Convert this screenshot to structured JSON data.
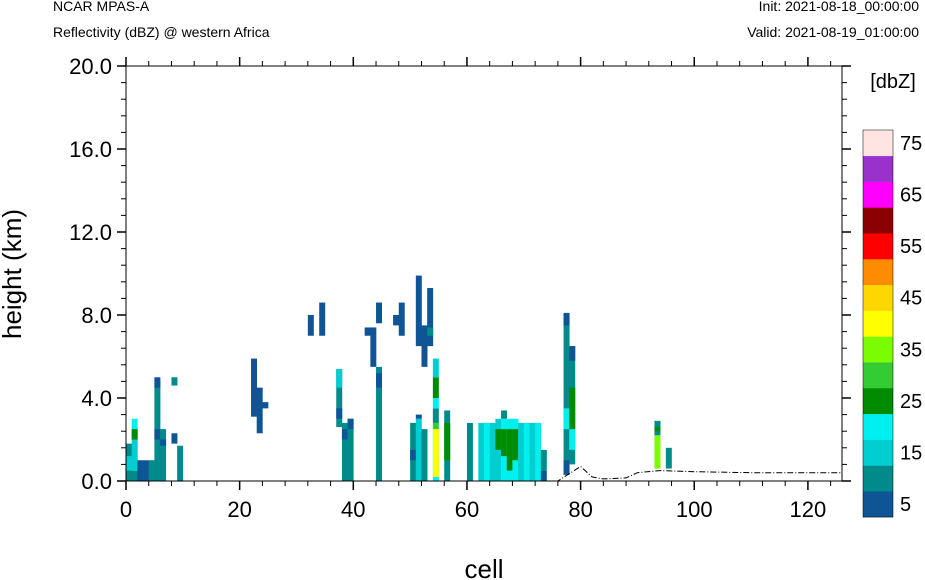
{
  "header": {
    "model": "NCAR MPAS-A",
    "field": "Reflectivity (dBZ) @ western Africa",
    "init": "Init: 2021-08-18_00:00:00",
    "valid": "Valid: 2021-08-19_01:00:00"
  },
  "chart_data": {
    "type": "heatmap",
    "xlabel": "cell",
    "ylabel": "height (km)",
    "xlim": [
      0,
      126
    ],
    "ylim": [
      0,
      20
    ],
    "x_ticks": [
      "0",
      "20",
      "40",
      "60",
      "80",
      "100",
      "120"
    ],
    "y_ticks": [
      "0.0",
      "4.0",
      "8.0",
      "12.0",
      "16.0",
      "20.0"
    ],
    "colorbar": {
      "title": "[dbZ]",
      "levels": [
        5,
        10,
        15,
        20,
        25,
        30,
        35,
        40,
        45,
        50,
        55,
        60,
        65,
        70,
        75
      ],
      "labels": [
        "5",
        "15",
        "25",
        "35",
        "45",
        "55",
        "65",
        "75"
      ],
      "colors": [
        "#0f5596",
        "#008b8b",
        "#00ced1",
        "#00f0f0",
        "#008c00",
        "#33cc33",
        "#7cfc00",
        "#ffff00",
        "#ffd700",
        "#ff8c00",
        "#ff0000",
        "#8b0000",
        "#ff00ff",
        "#9932cc",
        "#ffe4e1"
      ]
    },
    "cells": [
      [
        0.5,
        0,
        1.8,
        10
      ],
      [
        0.5,
        0.5,
        1.2,
        15
      ],
      [
        1.5,
        0,
        0.5,
        10
      ],
      [
        1.5,
        0.5,
        2.5,
        15
      ],
      [
        1.5,
        2.5,
        3.0,
        20
      ],
      [
        1.5,
        2.0,
        2.5,
        25
      ],
      [
        2.5,
        0,
        1.0,
        5
      ],
      [
        3.5,
        0,
        1.0,
        5
      ],
      [
        4.5,
        0,
        1.0,
        10
      ],
      [
        5.5,
        0,
        4.8,
        10
      ],
      [
        5.5,
        2.0,
        2.5,
        5
      ],
      [
        5.5,
        4.5,
        5.0,
        5
      ],
      [
        6.5,
        0,
        2.5,
        10
      ],
      [
        6.5,
        1.7,
        2.0,
        5
      ],
      [
        8.5,
        1.8,
        2.3,
        5
      ],
      [
        8.5,
        4.6,
        5.0,
        10
      ],
      [
        9.5,
        0,
        1.7,
        10
      ],
      [
        22.5,
        3.1,
        5.9,
        5
      ],
      [
        23.5,
        2.3,
        4.5,
        5
      ],
      [
        24.5,
        3.5,
        3.8,
        5
      ],
      [
        32.5,
        7.0,
        8.0,
        5
      ],
      [
        34.5,
        7.0,
        8.6,
        5
      ],
      [
        37.5,
        2.6,
        5.4,
        10
      ],
      [
        37.5,
        3.0,
        3.5,
        5
      ],
      [
        37.5,
        4.5,
        5.4,
        15
      ],
      [
        38.5,
        0,
        2.8,
        10
      ],
      [
        38.5,
        2.0,
        2.5,
        5
      ],
      [
        39.5,
        0,
        3.0,
        10
      ],
      [
        39.5,
        2.5,
        3.0,
        5
      ],
      [
        42.5,
        7.0,
        7.4,
        5
      ],
      [
        43.5,
        5.5,
        7.4,
        5
      ],
      [
        44.5,
        0,
        5.5,
        10
      ],
      [
        44.5,
        4.5,
        5.2,
        5
      ],
      [
        44.5,
        7.6,
        8.6,
        5
      ],
      [
        47.5,
        7.5,
        8.0,
        5
      ],
      [
        48.5,
        7.0,
        8.6,
        5
      ],
      [
        50.5,
        0,
        2.8,
        10
      ],
      [
        50.5,
        1.0,
        1.5,
        5
      ],
      [
        51.5,
        0,
        3.0,
        15
      ],
      [
        51.5,
        3.0,
        3.2,
        5
      ],
      [
        51.5,
        6.5,
        9.9,
        5
      ],
      [
        52.5,
        5.5,
        7.5,
        5
      ],
      [
        52.5,
        0,
        2.5,
        10
      ],
      [
        53.5,
        6.5,
        9.3,
        5
      ],
      [
        53.5,
        7.0,
        7.4,
        10
      ],
      [
        54.5,
        0,
        2.5,
        20
      ],
      [
        54.5,
        2.5,
        2.8,
        30
      ],
      [
        54.5,
        2.8,
        3.5,
        10
      ],
      [
        54.5,
        3.5,
        4.0,
        20
      ],
      [
        54.5,
        4.0,
        5.0,
        25
      ],
      [
        54.5,
        5.0,
        5.9,
        15
      ],
      [
        54.5,
        0.2,
        2.5,
        40
      ],
      [
        56.5,
        0,
        3.4,
        10
      ],
      [
        56.5,
        1.0,
        2.8,
        25
      ],
      [
        60.5,
        0,
        2.8,
        10
      ],
      [
        62.5,
        0,
        2.8,
        15
      ],
      [
        63.5,
        0,
        2.8,
        20
      ],
      [
        64.5,
        0,
        2.8,
        15
      ],
      [
        65.5,
        0,
        3.0,
        15
      ],
      [
        65.5,
        1.5,
        2.5,
        25
      ],
      [
        66.5,
        0,
        3.0,
        20
      ],
      [
        66.5,
        1.2,
        2.5,
        25
      ],
      [
        66.5,
        3.0,
        3.4,
        10
      ],
      [
        67.5,
        0,
        3.0,
        20
      ],
      [
        67.5,
        0.5,
        2.5,
        25
      ],
      [
        68.5,
        0,
        3.0,
        20
      ],
      [
        68.5,
        1.0,
        2.5,
        25
      ],
      [
        69.5,
        0,
        2.8,
        15
      ],
      [
        70.5,
        0,
        2.8,
        20
      ],
      [
        71.5,
        0,
        2.8,
        15
      ],
      [
        72.5,
        0,
        2.8,
        20
      ],
      [
        73.5,
        0.5,
        1.5,
        10
      ],
      [
        73.5,
        0,
        0.5,
        5
      ],
      [
        77.5,
        0.3,
        8.1,
        10
      ],
      [
        77.5,
        2.5,
        3.5,
        20
      ],
      [
        77.5,
        7.5,
        8.1,
        5
      ],
      [
        77.5,
        0.3,
        1.0,
        5
      ],
      [
        78.5,
        0.8,
        6.5,
        10
      ],
      [
        78.5,
        2.5,
        4.5,
        25
      ],
      [
        78.5,
        1.5,
        2.5,
        20
      ],
      [
        78.5,
        5.8,
        6.5,
        5
      ],
      [
        93.5,
        2.2,
        2.9,
        10
      ],
      [
        93.5,
        0.6,
        2.2,
        35
      ],
      [
        93.5,
        2.4,
        2.6,
        25
      ],
      [
        95.5,
        0.6,
        1.6,
        10
      ]
    ],
    "terrain": [
      [
        0,
        0
      ],
      [
        76,
        0
      ],
      [
        78,
        0.35
      ],
      [
        80,
        0.7
      ],
      [
        82,
        0.2
      ],
      [
        84,
        0.1
      ],
      [
        88,
        0.15
      ],
      [
        90,
        0.4
      ],
      [
        94,
        0.5
      ],
      [
        100,
        0.45
      ],
      [
        110,
        0.4
      ],
      [
        126,
        0.4
      ]
    ]
  }
}
